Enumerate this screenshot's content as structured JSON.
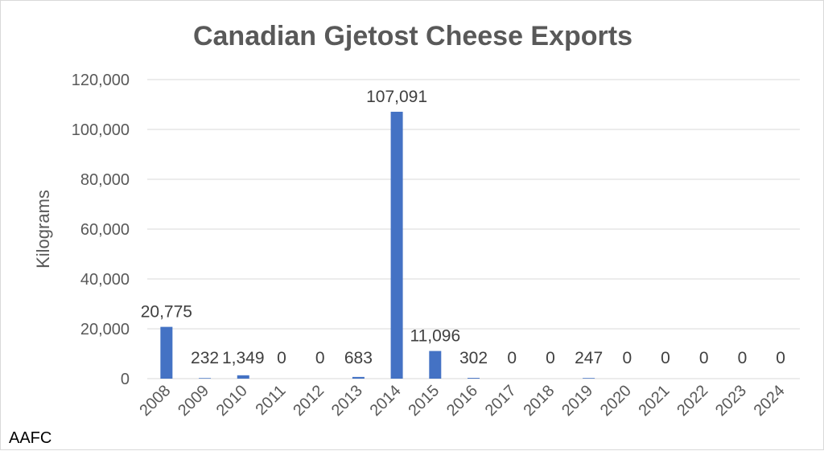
{
  "chart_data": {
    "type": "bar",
    "title": "Canadian Gjetost Cheese Exports",
    "xlabel": "",
    "ylabel": "Kilograms",
    "ylim": [
      0,
      120000
    ],
    "yticks": [
      0,
      20000,
      40000,
      60000,
      80000,
      100000,
      120000
    ],
    "ytick_labels": [
      "0",
      "20,000",
      "40,000",
      "60,000",
      "80,000",
      "100,000",
      "120,000"
    ],
    "grid": true,
    "legend": "none",
    "color": "#4472c4",
    "categories": [
      "2008",
      "2009",
      "2010",
      "2011",
      "2012",
      "2013",
      "2014",
      "2015",
      "2016",
      "2017",
      "2018",
      "2019",
      "2020",
      "2021",
      "2022",
      "2023",
      "2024"
    ],
    "values": [
      20775,
      232,
      1349,
      0,
      0,
      683,
      107091,
      11096,
      302,
      0,
      0,
      247,
      0,
      0,
      0,
      0,
      0
    ],
    "data_labels": [
      "20,775",
      "232",
      "1,349",
      "0",
      "0",
      "683",
      "107,091",
      "11,096",
      "302",
      "0",
      "0",
      "247",
      "0",
      "0",
      "0",
      "0",
      "0"
    ]
  },
  "source": "AAFC"
}
